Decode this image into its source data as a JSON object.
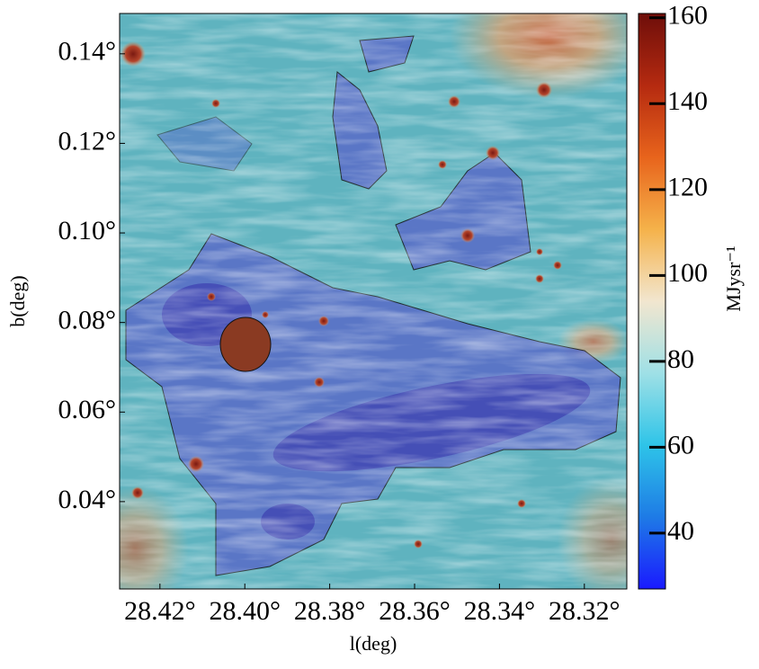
{
  "chart_data": {
    "type": "image",
    "xlabel": "l(deg)",
    "ylabel": "b(deg)",
    "xlim": [
      28.4295,
      28.31
    ],
    "ylim": [
      0.0205,
      0.149
    ],
    "xticks": [
      {
        "value": 28.42,
        "label": "28.42°"
      },
      {
        "value": 28.4,
        "label": "28.40°"
      },
      {
        "value": 28.38,
        "label": "28.38°"
      },
      {
        "value": 28.36,
        "label": "28.36°"
      },
      {
        "value": 28.34,
        "label": "28.34°"
      },
      {
        "value": 28.32,
        "label": "28.32°"
      }
    ],
    "yticks": [
      {
        "value": 0.04,
        "label": "0.04°"
      },
      {
        "value": 0.06,
        "label": "0.06°"
      },
      {
        "value": 0.08,
        "label": "0.08°"
      },
      {
        "value": 0.1,
        "label": "0.10°"
      },
      {
        "value": 0.12,
        "label": "0.12°"
      },
      {
        "value": 0.14,
        "label": "0.14°"
      }
    ],
    "colorbar_label": "MJysr⁻¹",
    "clim": [
      27,
      161
    ],
    "cticks": [
      40,
      60,
      80,
      100,
      120,
      140,
      160
    ],
    "colormap": [
      "#1a1aff",
      "#1e7be6",
      "#2ec4e8",
      "#9fe0e6",
      "#f2e6cf",
      "#f5b24a",
      "#e8641c",
      "#b52a10",
      "#6e0e0a"
    ]
  }
}
